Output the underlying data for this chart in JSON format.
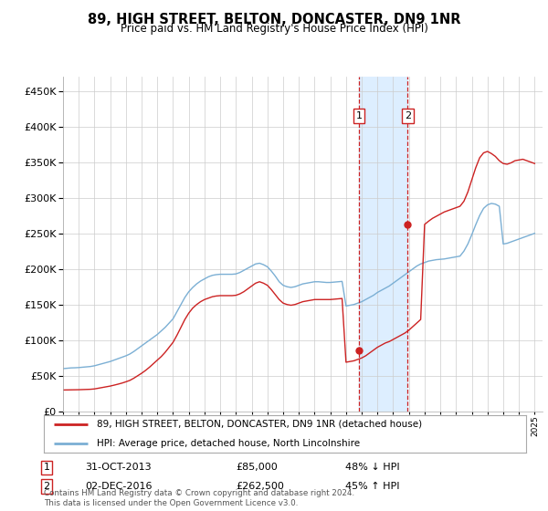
{
  "title": "89, HIGH STREET, BELTON, DONCASTER, DN9 1NR",
  "subtitle": "Price paid vs. HM Land Registry's House Price Index (HPI)",
  "ytick_values": [
    0,
    50000,
    100000,
    150000,
    200000,
    250000,
    300000,
    350000,
    400000,
    450000
  ],
  "ylim": [
    0,
    470000
  ],
  "xlim_start": 1995.0,
  "xlim_end": 2025.5,
  "annotation1": {
    "label": "1",
    "date_num": 2013.83,
    "price": 85000,
    "text": "31-OCT-2013",
    "price_text": "£85,000",
    "pct_text": "48% ↓ HPI"
  },
  "annotation2": {
    "label": "2",
    "date_num": 2016.92,
    "price": 262500,
    "text": "02-DEC-2016",
    "price_text": "£262,500",
    "pct_text": "45% ↑ HPI"
  },
  "legend_line1": "89, HIGH STREET, BELTON, DONCASTER, DN9 1NR (detached house)",
  "legend_line2": "HPI: Average price, detached house, North Lincolnshire",
  "footer": "Contains HM Land Registry data © Crown copyright and database right 2024.\nThis data is licensed under the Open Government Licence v3.0.",
  "hpi_color": "#7bafd4",
  "price_color": "#cc2222",
  "shade_color": "#ddeeff",
  "grid_color": "#cccccc",
  "background_color": "#ffffff",
  "hpi_data_x": [
    1995.0,
    1995.25,
    1995.5,
    1995.75,
    1996.0,
    1996.25,
    1996.5,
    1996.75,
    1997.0,
    1997.25,
    1997.5,
    1997.75,
    1998.0,
    1998.25,
    1998.5,
    1998.75,
    1999.0,
    1999.25,
    1999.5,
    1999.75,
    2000.0,
    2000.25,
    2000.5,
    2000.75,
    2001.0,
    2001.25,
    2001.5,
    2001.75,
    2002.0,
    2002.25,
    2002.5,
    2002.75,
    2003.0,
    2003.25,
    2003.5,
    2003.75,
    2004.0,
    2004.25,
    2004.5,
    2004.75,
    2005.0,
    2005.25,
    2005.5,
    2005.75,
    2006.0,
    2006.25,
    2006.5,
    2006.75,
    2007.0,
    2007.25,
    2007.5,
    2007.75,
    2008.0,
    2008.25,
    2008.5,
    2008.75,
    2009.0,
    2009.25,
    2009.5,
    2009.75,
    2010.0,
    2010.25,
    2010.5,
    2010.75,
    2011.0,
    2011.25,
    2011.5,
    2011.75,
    2012.0,
    2012.25,
    2012.5,
    2012.75,
    2013.0,
    2013.25,
    2013.5,
    2013.75,
    2014.0,
    2014.25,
    2014.5,
    2014.75,
    2015.0,
    2015.25,
    2015.5,
    2015.75,
    2016.0,
    2016.25,
    2016.5,
    2016.75,
    2017.0,
    2017.25,
    2017.5,
    2017.75,
    2018.0,
    2018.25,
    2018.5,
    2018.75,
    2019.0,
    2019.25,
    2019.5,
    2019.75,
    2020.0,
    2020.25,
    2020.5,
    2020.75,
    2021.0,
    2021.25,
    2021.5,
    2021.75,
    2022.0,
    2022.25,
    2022.5,
    2022.75,
    2023.0,
    2023.25,
    2023.5,
    2023.75,
    2024.0,
    2024.25,
    2024.5,
    2024.75,
    2025.0
  ],
  "hpi_data_y": [
    60000,
    60500,
    61000,
    61200,
    61500,
    62000,
    62500,
    63000,
    64000,
    65500,
    67000,
    68500,
    70000,
    72000,
    74000,
    76000,
    78000,
    80500,
    84000,
    88000,
    92000,
    96000,
    100000,
    104000,
    108000,
    113000,
    118000,
    124000,
    130000,
    140000,
    150000,
    160000,
    168000,
    174000,
    179000,
    183000,
    186000,
    189000,
    191000,
    192000,
    192500,
    192500,
    192500,
    192500,
    193000,
    195000,
    198000,
    201000,
    204000,
    207000,
    208000,
    206000,
    203000,
    197000,
    190000,
    182000,
    177000,
    175000,
    174000,
    175000,
    177000,
    179000,
    180000,
    181000,
    182000,
    182000,
    181500,
    181000,
    181000,
    181500,
    182000,
    182500,
    148000,
    149000,
    150000,
    152000,
    154000,
    157000,
    160000,
    163000,
    167000,
    170000,
    173000,
    176000,
    180000,
    184000,
    188000,
    192000,
    196000,
    200000,
    204000,
    207000,
    209000,
    211000,
    212000,
    213000,
    213500,
    214000,
    215000,
    216000,
    217000,
    218000,
    225000,
    235000,
    248000,
    262000,
    275000,
    285000,
    290000,
    292000,
    291000,
    288000,
    235000,
    236000,
    238000,
    240000,
    242000,
    244000,
    246000,
    248000,
    250000
  ],
  "price_data_x": [
    1995.0,
    1995.25,
    1995.5,
    1995.75,
    1996.0,
    1996.25,
    1996.5,
    1996.75,
    1997.0,
    1997.25,
    1997.5,
    1997.75,
    1998.0,
    1998.25,
    1998.5,
    1998.75,
    1999.0,
    1999.25,
    1999.5,
    1999.75,
    2000.0,
    2000.25,
    2000.5,
    2000.75,
    2001.0,
    2001.25,
    2001.5,
    2001.75,
    2002.0,
    2002.25,
    2002.5,
    2002.75,
    2003.0,
    2003.25,
    2003.5,
    2003.75,
    2004.0,
    2004.25,
    2004.5,
    2004.75,
    2005.0,
    2005.25,
    2005.5,
    2005.75,
    2006.0,
    2006.25,
    2006.5,
    2006.75,
    2007.0,
    2007.25,
    2007.5,
    2007.75,
    2008.0,
    2008.25,
    2008.5,
    2008.75,
    2009.0,
    2009.25,
    2009.5,
    2009.75,
    2010.0,
    2010.25,
    2010.5,
    2010.75,
    2011.0,
    2011.25,
    2011.5,
    2011.75,
    2012.0,
    2012.25,
    2012.5,
    2012.75,
    2013.0,
    2013.25,
    2013.5,
    2013.75,
    2014.0,
    2014.25,
    2014.5,
    2014.75,
    2015.0,
    2015.25,
    2015.5,
    2015.75,
    2016.0,
    2016.25,
    2016.5,
    2016.75,
    2017.0,
    2017.25,
    2017.5,
    2017.75,
    2018.0,
    2018.25,
    2018.5,
    2018.75,
    2019.0,
    2019.25,
    2019.5,
    2019.75,
    2020.0,
    2020.25,
    2020.5,
    2020.75,
    2021.0,
    2021.25,
    2021.5,
    2021.75,
    2022.0,
    2022.25,
    2022.5,
    2022.75,
    2023.0,
    2023.25,
    2023.5,
    2023.75,
    2024.0,
    2024.25,
    2024.5,
    2024.75,
    2025.0
  ],
  "price_data_y": [
    30000,
    30100,
    30200,
    30300,
    30400,
    30600,
    30800,
    31000,
    31500,
    32500,
    33500,
    34500,
    35500,
    36800,
    38200,
    39700,
    41500,
    43500,
    46500,
    50000,
    53500,
    57500,
    62000,
    67000,
    72000,
    77000,
    83000,
    90000,
    97000,
    107000,
    118000,
    129000,
    138000,
    145000,
    150000,
    154000,
    157000,
    159000,
    161000,
    162000,
    162500,
    162500,
    162500,
    162500,
    163000,
    165000,
    168000,
    172000,
    176000,
    180000,
    182000,
    180000,
    177000,
    171000,
    164000,
    157000,
    152000,
    150000,
    149000,
    150000,
    152000,
    154000,
    155000,
    156000,
    157000,
    157000,
    157000,
    157000,
    157000,
    157500,
    158000,
    158500,
    69000,
    70000,
    71000,
    73000,
    75000,
    78000,
    82000,
    86000,
    90000,
    93000,
    96000,
    98000,
    101000,
    104000,
    107000,
    110000,
    114000,
    119000,
    124000,
    129000,
    262500,
    267000,
    271000,
    274000,
    277000,
    280000,
    282000,
    284000,
    286000,
    288000,
    295000,
    308000,
    325000,
    342000,
    356000,
    363000,
    365000,
    362000,
    358000,
    352000,
    348000,
    347000,
    349000,
    352000,
    353000,
    354000,
    352000,
    350000,
    348000
  ]
}
